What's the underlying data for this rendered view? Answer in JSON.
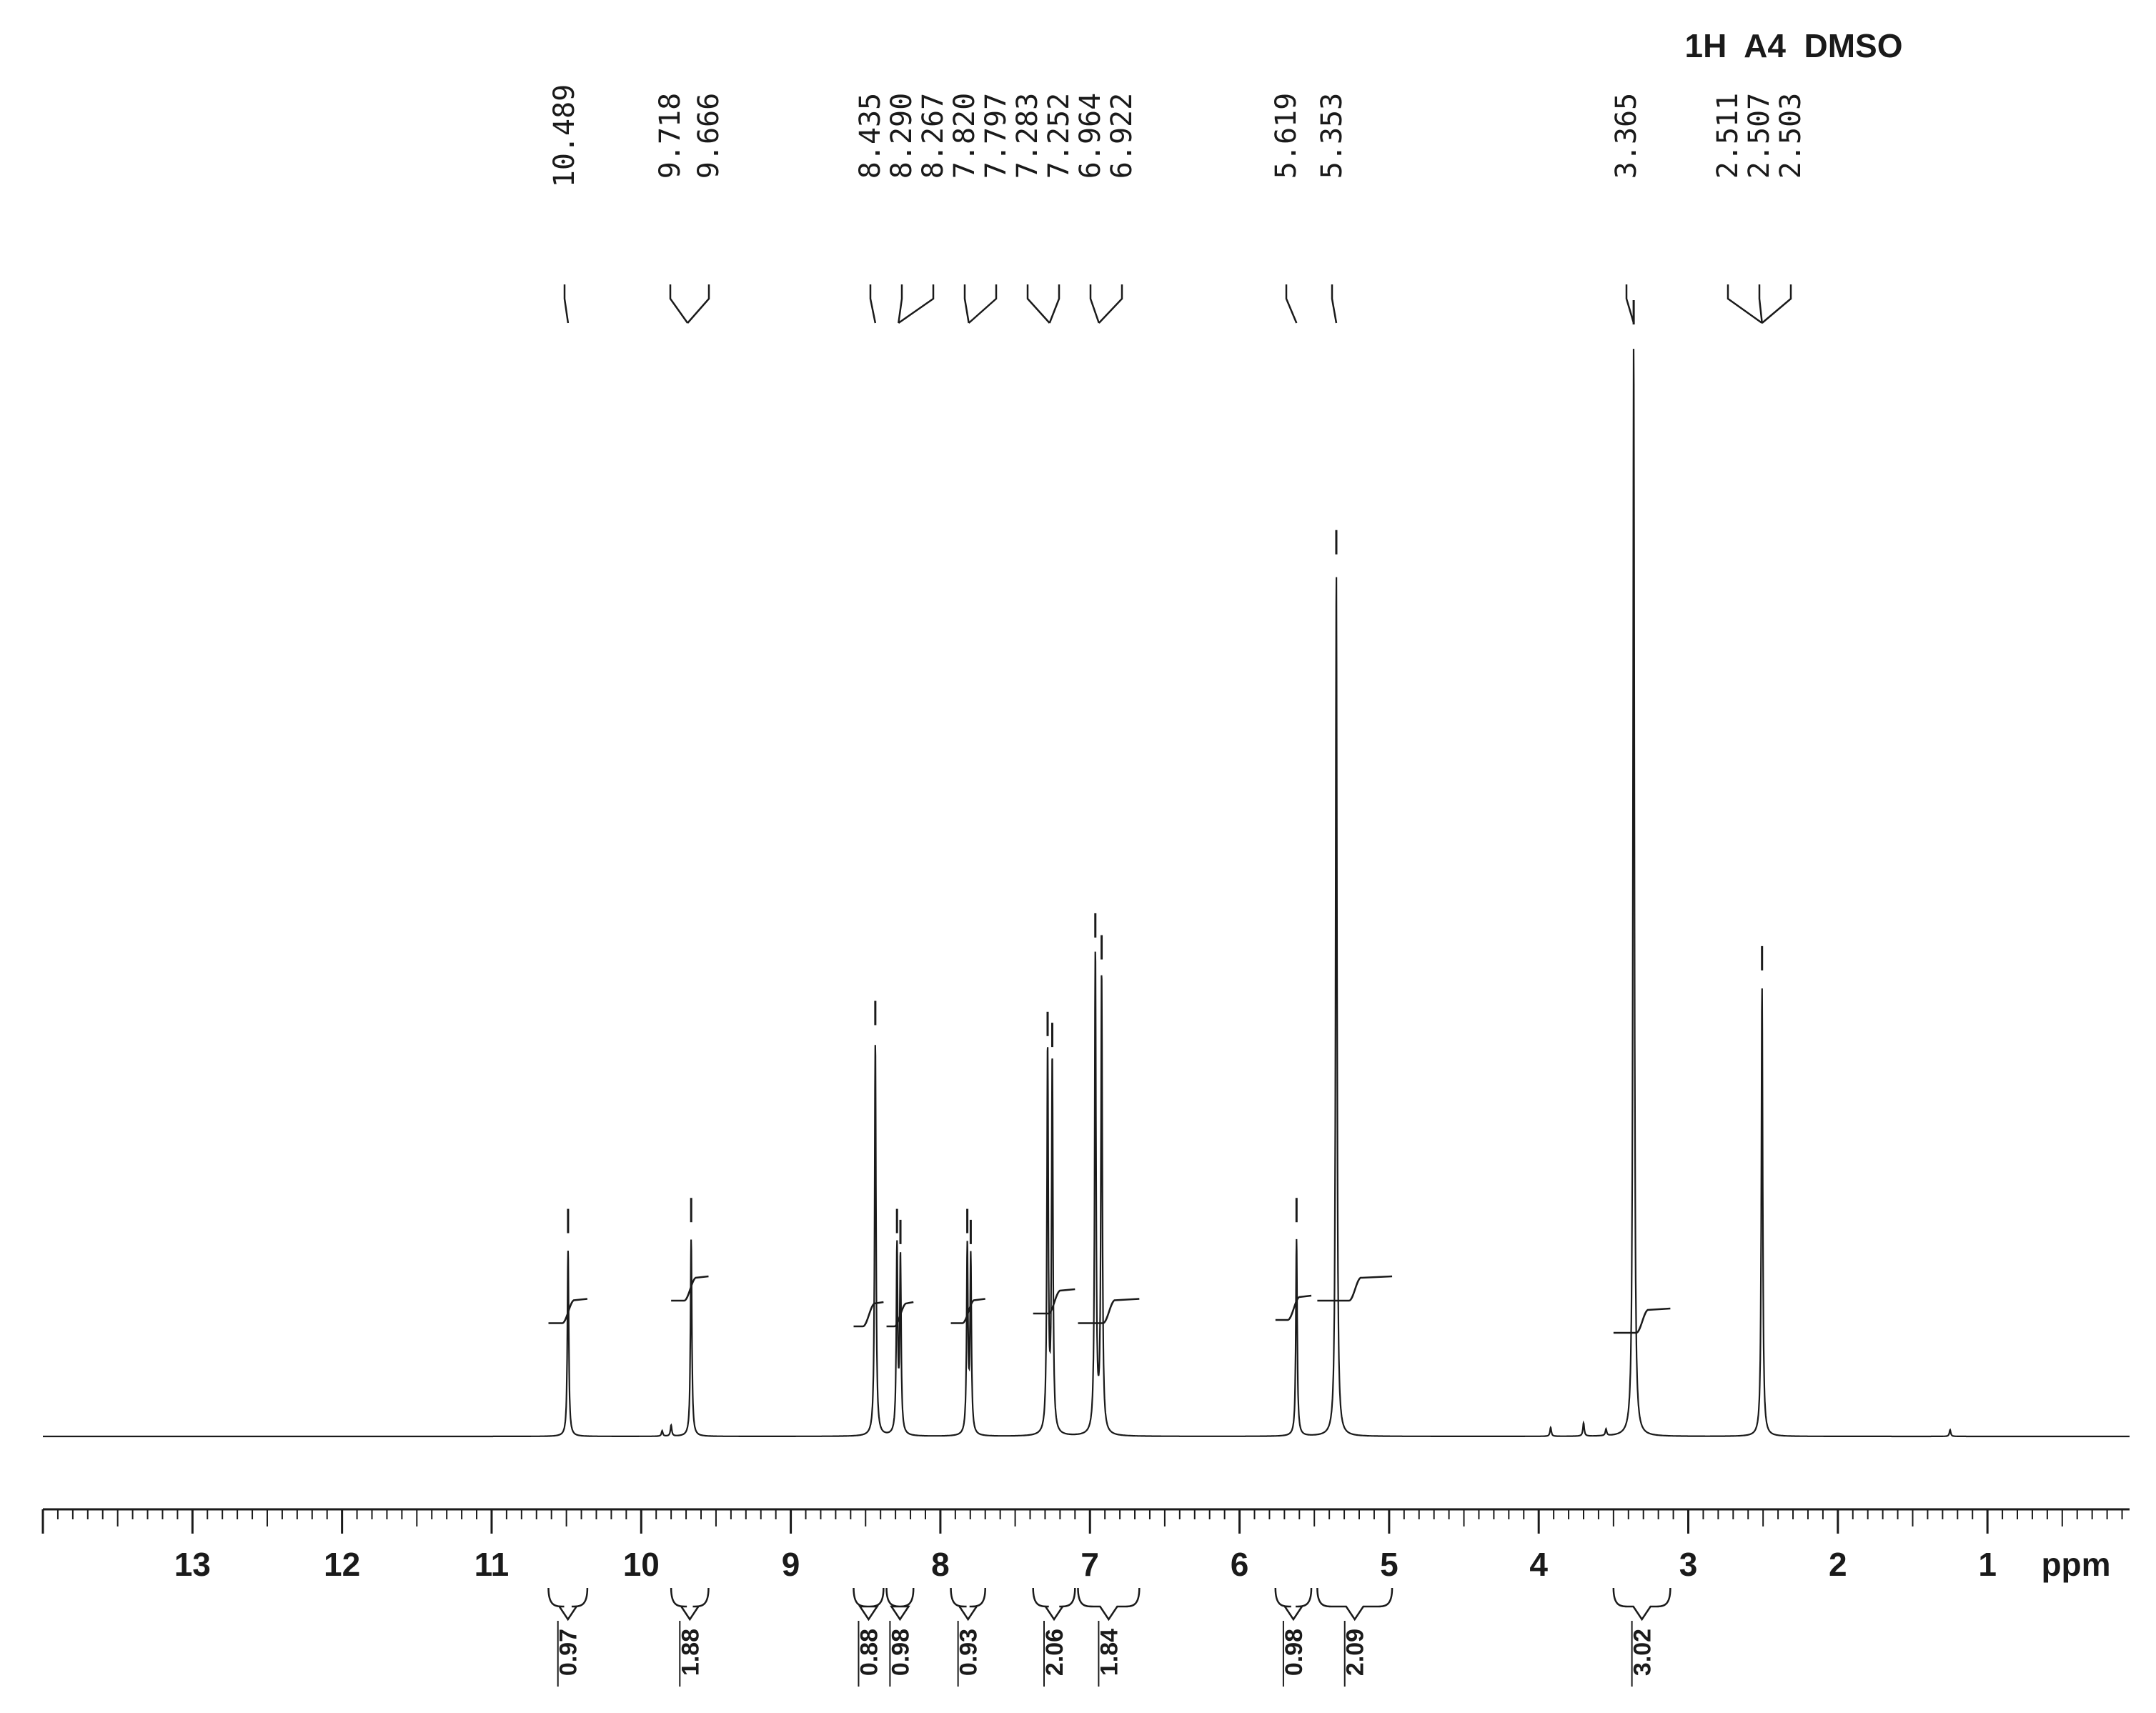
{
  "header": {
    "title": "1H  A4  DMSO"
  },
  "chart_data": {
    "type": "line",
    "title": "1H  A4  DMSO",
    "xlabel": "ppm",
    "ylabel": "",
    "x_reversed": true,
    "xlim": [
      14.0,
      0.05
    ],
    "ylim": [
      0,
      1.0
    ],
    "grid": false,
    "x_ticks": [
      13,
      12,
      11,
      10,
      9,
      8,
      7,
      6,
      5,
      4,
      3,
      2,
      1
    ],
    "peak_labels": [
      "10.489",
      "9.718",
      "9.666",
      "8.435",
      "8.290",
      "8.267",
      "7.820",
      "7.797",
      "7.283",
      "7.252",
      "6.964",
      "6.922",
      "5.619",
      "5.353",
      "3.365",
      "2.511",
      "2.507",
      "2.503"
    ],
    "series": [
      {
        "peaks": [
          {
            "x": 10.489,
            "y": 0.17
          },
          {
            "x": 9.666,
            "y": 0.18
          },
          {
            "x": 9.8,
            "y": 0.01
          },
          {
            "x": 9.86,
            "y": 0.005
          },
          {
            "x": 8.435,
            "y": 0.36
          },
          {
            "x": 8.29,
            "y": 0.17
          },
          {
            "x": 8.267,
            "y": 0.16
          },
          {
            "x": 7.82,
            "y": 0.17
          },
          {
            "x": 7.797,
            "y": 0.16
          },
          {
            "x": 7.283,
            "y": 0.35
          },
          {
            "x": 7.252,
            "y": 0.34
          },
          {
            "x": 6.964,
            "y": 0.44
          },
          {
            "x": 6.922,
            "y": 0.42
          },
          {
            "x": 5.619,
            "y": 0.18
          },
          {
            "x": 5.353,
            "y": 0.79
          },
          {
            "x": 3.365,
            "y": 1.0
          },
          {
            "x": 2.507,
            "y": 0.41
          },
          {
            "x": 3.7,
            "y": 0.012
          },
          {
            "x": 3.92,
            "y": 0.008
          },
          {
            "x": 3.55,
            "y": 0.006
          },
          {
            "x": 1.25,
            "y": 0.006
          }
        ]
      }
    ],
    "integrals": [
      {
        "from": 10.62,
        "to": 10.36,
        "value": "0.97",
        "rise": 0.015
      },
      {
        "from": 9.8,
        "to": 9.55,
        "value": "1.88",
        "rise": 0.05
      },
      {
        "from": 8.58,
        "to": 8.38,
        "value": "0.88",
        "rise": 0.01
      },
      {
        "from": 8.36,
        "to": 8.18,
        "value": "0.98",
        "rise": 0.01
      },
      {
        "from": 7.93,
        "to": 7.7,
        "value": "0.93",
        "rise": 0.015
      },
      {
        "from": 7.38,
        "to": 7.1,
        "value": "2.06",
        "rise": 0.03
      },
      {
        "from": 7.08,
        "to": 6.67,
        "value": "1.84",
        "rise": 0.015
      },
      {
        "from": 5.76,
        "to": 5.52,
        "value": "0.98",
        "rise": 0.02
      },
      {
        "from": 5.48,
        "to": 4.98,
        "value": "2.09",
        "rise": 0.05
      },
      {
        "from": 3.5,
        "to": 3.12,
        "value": "3.02",
        "rise": 0.0
      }
    ]
  }
}
